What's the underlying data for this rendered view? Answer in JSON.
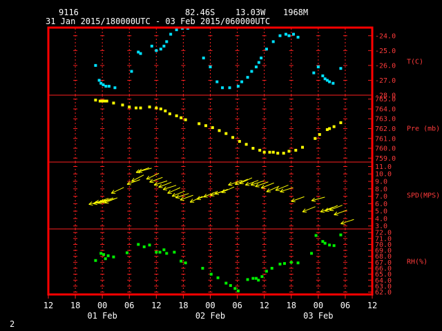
{
  "header": {
    "station": "9116",
    "lat": "82.46S",
    "lon": "13.03W",
    "elev": "1968M",
    "period": "31 Jan 2015/180000UTC - 03 Feb 2015/060000UTC"
  },
  "page_number": "2",
  "colors": {
    "frame": "#ff0000",
    "grid": "#ff2020",
    "temp": "#00e0ff",
    "pres": "#ffff00",
    "wind": "#ffff00",
    "rh": "#00ee00",
    "text": "#ffffff"
  },
  "chart_data": {
    "type": "scatter",
    "x_unit": "hours since 31 Jan 2015 12 UTC",
    "xlim": [
      0,
      72
    ],
    "x_tick_labels": [
      "12",
      "18",
      "00",
      "06",
      "12",
      "18",
      "00",
      "06",
      "12",
      "18",
      "00",
      "06",
      "12"
    ],
    "x_tick_values": [
      0,
      6,
      12,
      18,
      24,
      30,
      36,
      42,
      48,
      54,
      60,
      66,
      72
    ],
    "day_labels": [
      {
        "label": "01 Feb",
        "x": 12
      },
      {
        "label": "02 Feb",
        "x": 36
      },
      {
        "label": "03 Feb",
        "x": 60
      }
    ],
    "panels": [
      {
        "id": "temp",
        "label": "T(C)",
        "ylim": [
          -28,
          -23.5
        ],
        "ticks": [
          -28,
          -27,
          -26,
          -25,
          -24
        ],
        "tick_labels": [
          "-28.0",
          "-27.0",
          "-26.0",
          "-25.0",
          "-24.0"
        ],
        "points": [
          [
            10.5,
            -26.0
          ],
          [
            11.3,
            -27.0
          ],
          [
            11.7,
            -27.2
          ],
          [
            12.2,
            -27.3
          ],
          [
            12.8,
            -27.4
          ],
          [
            13.5,
            -27.4
          ],
          [
            14.8,
            -27.5
          ],
          [
            18.5,
            -26.4
          ],
          [
            20,
            -25.1
          ],
          [
            20.5,
            -25.2
          ],
          [
            23,
            -24.7
          ],
          [
            24,
            -25.0
          ],
          [
            25,
            -24.9
          ],
          [
            25.7,
            -24.7
          ],
          [
            26.3,
            -24.4
          ],
          [
            27.2,
            -23.9
          ],
          [
            28.5,
            -23.6
          ],
          [
            29.8,
            -23.5
          ],
          [
            31,
            -23.5
          ],
          [
            34.5,
            -25.5
          ],
          [
            36,
            -26.1
          ],
          [
            37.5,
            -27.1
          ],
          [
            38.7,
            -27.5
          ],
          [
            40.3,
            -27.5
          ],
          [
            42.2,
            -27.4
          ],
          [
            43,
            -27.1
          ],
          [
            44.3,
            -26.8
          ],
          [
            45.2,
            -26.4
          ],
          [
            46.2,
            -26.1
          ],
          [
            46.8,
            -25.8
          ],
          [
            47.3,
            -25.5
          ],
          [
            48.5,
            -24.9
          ],
          [
            50,
            -24.4
          ],
          [
            51.5,
            -24.0
          ],
          [
            52.8,
            -23.9
          ],
          [
            53.5,
            -24.0
          ],
          [
            54.5,
            -23.9
          ],
          [
            55.5,
            -24.1
          ],
          [
            59,
            -26.5
          ],
          [
            60,
            -26.1
          ],
          [
            61,
            -26.7
          ],
          [
            61.5,
            -26.9
          ],
          [
            62,
            -27.0
          ],
          [
            62.5,
            -27.1
          ],
          [
            63.3,
            -27.2
          ],
          [
            65,
            -26.2
          ]
        ]
      },
      {
        "id": "pres",
        "label": "Pre (mb)",
        "ylim": [
          758.6,
          765.4
        ],
        "ticks": [
          759,
          760,
          761,
          762,
          763,
          764,
          765
        ],
        "tick_labels": [
          "759.0",
          "760.0",
          "761.0",
          "762.0",
          "763.0",
          "764.0",
          "765.0"
        ],
        "points": [
          [
            10.5,
            764.9
          ],
          [
            11.5,
            764.8
          ],
          [
            12,
            764.8
          ],
          [
            12.5,
            764.8
          ],
          [
            13,
            764.8
          ],
          [
            14.5,
            764.6
          ],
          [
            16.5,
            764.4
          ],
          [
            18,
            764.2
          ],
          [
            19.5,
            764.1
          ],
          [
            20.5,
            764.1
          ],
          [
            22.5,
            764.2
          ],
          [
            24,
            764.1
          ],
          [
            25,
            764.0
          ],
          [
            26,
            763.8
          ],
          [
            27,
            763.5
          ],
          [
            28.5,
            763.3
          ],
          [
            29.5,
            763.1
          ],
          [
            30.5,
            762.9
          ],
          [
            33.5,
            762.5
          ],
          [
            35,
            762.3
          ],
          [
            36.5,
            762.1
          ],
          [
            38,
            761.8
          ],
          [
            39.5,
            761.5
          ],
          [
            41,
            761.1
          ],
          [
            42.5,
            760.7
          ],
          [
            44,
            760.4
          ],
          [
            45.5,
            760.0
          ],
          [
            47,
            759.8
          ],
          [
            48,
            759.6
          ],
          [
            49.2,
            759.6
          ],
          [
            50,
            759.6
          ],
          [
            51,
            759.5
          ],
          [
            52.3,
            759.5
          ],
          [
            53.5,
            759.7
          ],
          [
            55,
            759.8
          ],
          [
            56.5,
            760.1
          ],
          [
            59.3,
            761.0
          ],
          [
            60.3,
            761.4
          ],
          [
            62,
            761.9
          ],
          [
            62.5,
            762.0
          ],
          [
            63.5,
            762.2
          ],
          [
            65,
            762.6
          ]
        ]
      },
      {
        "id": "wind",
        "label": "SPD(MPS)",
        "ylim": [
          2.6,
          11.6
        ],
        "ticks": [
          3,
          4,
          5,
          6,
          7,
          8,
          9,
          10,
          11
        ],
        "tick_labels": [
          "3.0",
          "4.0",
          "5.0",
          "6.0",
          "7.0",
          "8.0",
          "9.0",
          "10.0",
          "11.0"
        ],
        "points": [
          [
            9,
            5.9,
            15
          ],
          [
            10,
            6.0,
            12
          ],
          [
            10.5,
            6.1,
            20
          ],
          [
            11,
            6.1,
            14
          ],
          [
            11.5,
            6.2,
            18
          ],
          [
            12,
            6.2,
            16
          ],
          [
            12.5,
            6.1,
            22
          ],
          [
            14,
            7.4,
            25
          ],
          [
            17.5,
            8.6,
            20
          ],
          [
            18.5,
            9.0,
            28
          ],
          [
            19.5,
            10.2,
            20
          ],
          [
            20,
            10.3,
            15
          ],
          [
            21.8,
            9.3,
            25
          ],
          [
            22.5,
            8.9,
            20
          ],
          [
            23.5,
            8.5,
            18
          ],
          [
            24.5,
            8.2,
            22
          ],
          [
            25.5,
            7.9,
            18
          ],
          [
            26.5,
            7.4,
            24
          ],
          [
            27.5,
            7.0,
            22
          ],
          [
            28.3,
            6.8,
            18
          ],
          [
            29.3,
            6.5,
            20
          ],
          [
            31.5,
            6.2,
            25
          ],
          [
            33,
            6.6,
            20
          ],
          [
            34.5,
            6.9,
            22
          ],
          [
            36,
            7.1,
            18
          ],
          [
            37,
            7.3,
            20
          ],
          [
            38.5,
            7.5,
            24
          ],
          [
            40,
            8.5,
            20
          ],
          [
            41.5,
            8.6,
            22
          ],
          [
            42.5,
            8.7,
            25
          ],
          [
            43.8,
            8.5,
            20
          ],
          [
            45,
            8.5,
            18
          ],
          [
            46,
            8.3,
            20
          ],
          [
            47.3,
            8.1,
            22
          ],
          [
            48.5,
            7.6,
            24
          ],
          [
            50.5,
            7.8,
            22
          ],
          [
            51.5,
            7.6,
            18
          ],
          [
            54,
            6.3,
            20
          ],
          [
            56.5,
            4.9,
            22
          ],
          [
            58.5,
            6.4,
            15
          ],
          [
            60.5,
            4.9,
            20
          ],
          [
            61.5,
            5.0,
            24
          ],
          [
            62.5,
            5.1,
            22
          ],
          [
            63.5,
            4.5,
            20
          ],
          [
            65,
            3.3,
            18
          ]
        ]
      },
      {
        "id": "rh",
        "label": "RH(%)",
        "ylim": [
          61.6,
          72.6
        ],
        "ticks": [
          62,
          63,
          64,
          65,
          66,
          67,
          68,
          69,
          70,
          71,
          72
        ],
        "tick_labels": [
          "62.0",
          "63.0",
          "64.0",
          "65.0",
          "66.0",
          "67.0",
          "68.0",
          "69.0",
          "70.0",
          "71.0",
          "72.0"
        ],
        "points": [
          [
            10.5,
            67.3
          ],
          [
            11.7,
            68.5
          ],
          [
            12.3,
            68.3
          ],
          [
            12.7,
            67.6
          ],
          [
            13.3,
            68.1
          ],
          [
            14.5,
            67.9
          ],
          [
            17.5,
            68.6
          ],
          [
            20,
            70.0
          ],
          [
            21.3,
            69.6
          ],
          [
            22.5,
            69.9
          ],
          [
            24,
            68.7
          ],
          [
            24.8,
            68.7
          ],
          [
            25.7,
            69.1
          ],
          [
            26.3,
            68.5
          ],
          [
            28,
            68.7
          ],
          [
            29.5,
            67.2
          ],
          [
            30.5,
            66.9
          ],
          [
            34.3,
            66.0
          ],
          [
            36.2,
            65.0
          ],
          [
            37.7,
            64.4
          ],
          [
            39.5,
            63.5
          ],
          [
            40.5,
            63.1
          ],
          [
            41.5,
            62.6
          ],
          [
            42.2,
            62.2
          ],
          [
            44.3,
            64.1
          ],
          [
            45.5,
            64.3
          ],
          [
            46.2,
            64.3
          ],
          [
            46.7,
            64.0
          ],
          [
            47.5,
            64.6
          ],
          [
            48.5,
            65.5
          ],
          [
            49.7,
            66.0
          ],
          [
            51.5,
            66.7
          ],
          [
            52.5,
            66.8
          ],
          [
            54,
            67.0
          ],
          [
            55.5,
            66.9
          ],
          [
            58.5,
            68.5
          ],
          [
            59.5,
            71.5
          ],
          [
            61,
            70.5
          ],
          [
            61.5,
            70.2
          ],
          [
            62.5,
            69.9
          ],
          [
            63.5,
            69.8
          ],
          [
            65,
            71.6
          ]
        ]
      }
    ]
  }
}
